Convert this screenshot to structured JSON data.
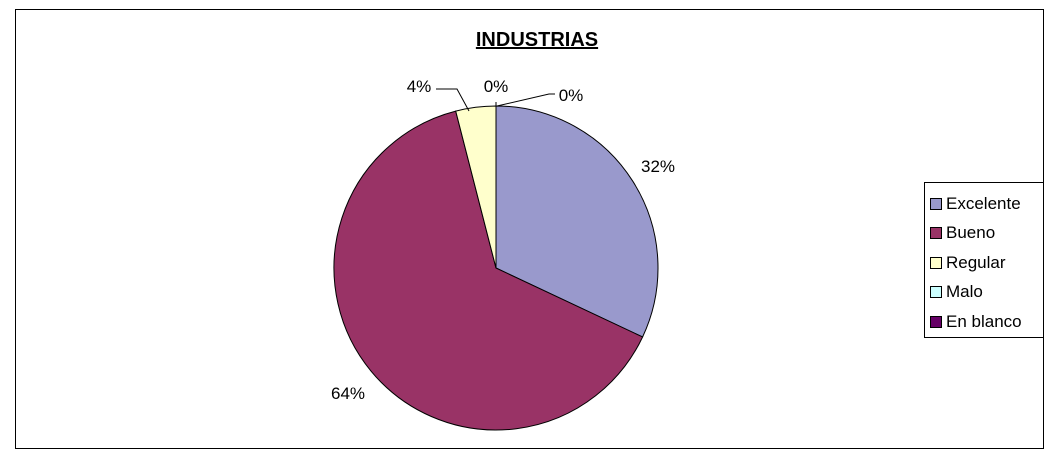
{
  "chart_data": {
    "type": "pie",
    "title": "INDUSTRIAS",
    "categories": [
      "Excelente",
      "Bueno",
      "Regular",
      "Malo",
      "En blanco"
    ],
    "values": [
      32,
      64,
      4,
      0,
      0
    ],
    "data_labels": [
      "32%",
      "64%",
      "4%",
      "0%",
      "0%"
    ],
    "colors": [
      "#9999CC",
      "#993366",
      "#FFFFCC",
      "#CCFFFF",
      "#660066"
    ],
    "legend_position": "right",
    "start_angle": "12 o'clock",
    "direction": "clockwise"
  }
}
